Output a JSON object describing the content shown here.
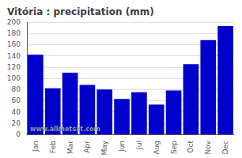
{
  "chart_data": {
    "type": "bar",
    "title": "Vitória : precipitation (mm)",
    "categories": [
      "Jan",
      "Feb",
      "Mar",
      "Apr",
      "May",
      "Jun",
      "Jul",
      "Aug",
      "Sep",
      "Oct",
      "Nov",
      "Dec"
    ],
    "values": [
      142,
      82,
      110,
      88,
      80,
      63,
      75,
      53,
      78,
      125,
      168,
      193
    ],
    "color": "#0000cc",
    "ylim": [
      0,
      200
    ],
    "yticks": [
      0,
      20,
      40,
      60,
      80,
      100,
      120,
      140,
      160,
      180,
      200
    ],
    "grid": true,
    "annotations": [
      "www.allmetsat.com"
    ]
  }
}
